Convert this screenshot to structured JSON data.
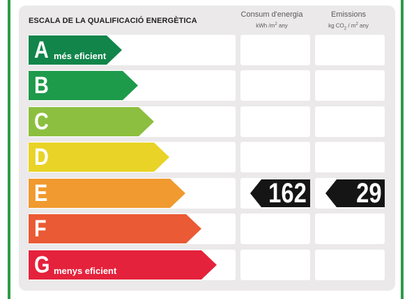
{
  "title": "ESCALA DE LA QUALIFICACIÓ ENERGÈTICA",
  "columns": {
    "energy": {
      "label": "Consum d'energia",
      "unit_prefix": "kWh /m",
      "unit_sup": "2",
      "unit_suffix": " any"
    },
    "emissions": {
      "label": "Emissions",
      "unit_prefix": "kg CO",
      "unit_sub": "2",
      "unit_mid": " / m",
      "unit_sup": "2",
      "unit_suffix": " any"
    }
  },
  "ratings": [
    {
      "letter": "A",
      "desc": "més eficient",
      "color": "#11854a"
    },
    {
      "letter": "B",
      "desc": "",
      "color": "#1d9a4a"
    },
    {
      "letter": "C",
      "desc": "",
      "color": "#8cbf3f"
    },
    {
      "letter": "D",
      "desc": "",
      "color": "#e9d327"
    },
    {
      "letter": "E",
      "desc": "",
      "color": "#f09a2f"
    },
    {
      "letter": "F",
      "desc": "",
      "color": "#ea5a34"
    },
    {
      "letter": "G",
      "desc": "menys eficient",
      "color": "#e5223c"
    }
  ],
  "current": {
    "rating": "E",
    "energy_value": "162",
    "emissions_value": "29"
  }
}
